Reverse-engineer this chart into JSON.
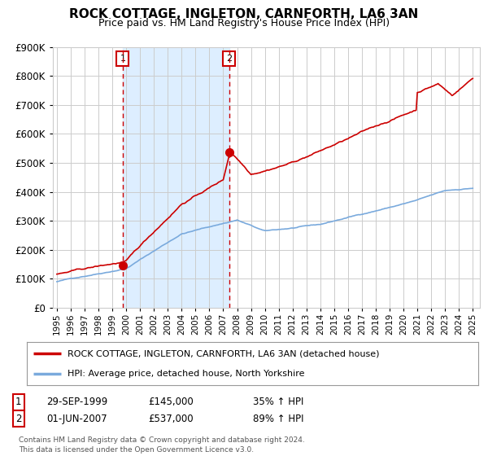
{
  "title": "ROCK COTTAGE, INGLETON, CARNFORTH, LA6 3AN",
  "subtitle": "Price paid vs. HM Land Registry's House Price Index (HPI)",
  "legend_line1": "ROCK COTTAGE, INGLETON, CARNFORTH, LA6 3AN (detached house)",
  "legend_line2": "HPI: Average price, detached house, North Yorkshire",
  "annotation1_label": "1",
  "annotation1_date": "29-SEP-1999",
  "annotation1_price": "£145,000",
  "annotation1_hpi": "35% ↑ HPI",
  "annotation2_label": "2",
  "annotation2_date": "01-JUN-2007",
  "annotation2_price": "£537,000",
  "annotation2_hpi": "89% ↑ HPI",
  "footer": "Contains HM Land Registry data © Crown copyright and database right 2024.\nThis data is licensed under the Open Government Licence v3.0.",
  "hpi_color": "#7aaadd",
  "price_color": "#cc0000",
  "vline_color": "#cc0000",
  "shade_color": "#ddeeff",
  "background_color": "#ffffff",
  "grid_color": "#cccccc",
  "ylim": [
    0,
    900000
  ],
  "yticks": [
    0,
    100000,
    200000,
    300000,
    400000,
    500000,
    600000,
    700000,
    800000,
    900000
  ],
  "xlim_start": 1994.7,
  "xlim_end": 2025.5,
  "sale1_x": 1999.75,
  "sale1_y": 145000,
  "sale2_x": 2007.42,
  "sale2_y": 537000
}
